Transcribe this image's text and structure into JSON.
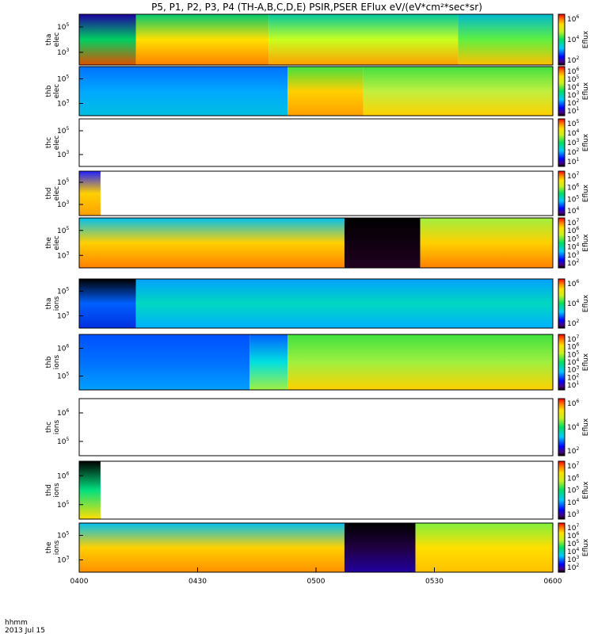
{
  "chart_data": {
    "type": "heatmap",
    "title": "P5, P1, P2, P3, P4 (TH-A,B,C,D,E) PSIR,PSER EFlux eV/(eV*cm²*sec*sr)",
    "x_ticks": [
      "0400",
      "0430",
      "0500",
      "0530",
      "0600"
    ],
    "x_label": [
      "hhmm",
      "2013 Jul 15"
    ],
    "x_range": [
      "04:00",
      "06:00"
    ],
    "panels": [
      {
        "label": [
          "tha",
          "elec"
        ],
        "yticks": [
          "10^5",
          "10^3"
        ],
        "cbar_label": "Eflux",
        "cbar_ticks": [
          "10^6",
          "10^4",
          "10^2"
        ],
        "segments": [
          {
            "from": 0,
            "to": 0.12,
            "bottom": "#e05000",
            "mid": "#00d060",
            "top": "#1c00a0"
          },
          {
            "from": 0.12,
            "to": 0.4,
            "bottom": "#ff8000",
            "mid": "#ffe000",
            "top": "#00c870"
          },
          {
            "from": 0.4,
            "to": 0.8,
            "bottom": "#ffa000",
            "mid": "#c8ff20",
            "top": "#00c8a0"
          },
          {
            "from": 0.8,
            "to": 1,
            "bottom": "#ffc000",
            "mid": "#60f040",
            "top": "#00b8d0"
          }
        ]
      },
      {
        "label": [
          "thb",
          "elec"
        ],
        "yticks": [
          "10^5",
          "10^3"
        ],
        "cbar_label": "Eflux",
        "cbar_ticks": [
          "10^6",
          "10^5",
          "10^4",
          "10^3",
          "10^2",
          "10^1"
        ],
        "segments": [
          {
            "from": 0,
            "to": 0.44,
            "bottom": "#00c0e0",
            "mid": "#00a8ff",
            "top": "#0070ff"
          },
          {
            "from": 0.44,
            "to": 0.6,
            "bottom": "#ffa000",
            "mid": "#ffd000",
            "top": "#40e040"
          },
          {
            "from": 0.6,
            "to": 1,
            "bottom": "#ffd000",
            "mid": "#c0f040",
            "top": "#40e040"
          }
        ]
      },
      {
        "label": [
          "thc",
          "elec"
        ],
        "yticks": [
          "10^5",
          "10^3"
        ],
        "cbar_label": "Eflux",
        "cbar_ticks": [
          "10^5",
          "10^4",
          "10^3",
          "10^2",
          "10^1"
        ],
        "segments": []
      },
      {
        "label": [
          "thd",
          "elec"
        ],
        "yticks": [
          "10^5",
          "10^3"
        ],
        "cbar_label": "Eflux",
        "cbar_ticks": [
          "10^7",
          "10^6",
          "10^5",
          "10^4"
        ],
        "segments": [
          {
            "from": 0,
            "to": 0.045,
            "bottom": "#ffa000",
            "mid": "#ffd000",
            "top": "#2020ff"
          }
        ]
      },
      {
        "label": [
          "the",
          "elec"
        ],
        "yticks": [
          "10^5",
          "10^3"
        ],
        "cbar_label": "Eflux",
        "cbar_ticks": [
          "10^7",
          "10^6",
          "10^5",
          "10^4",
          "10^3",
          "10^2"
        ],
        "segments": [
          {
            "from": 0,
            "to": 0.56,
            "bottom": "#ff8000",
            "mid": "#ffd000",
            "top": "#00c0f0"
          },
          {
            "from": 0.56,
            "to": 0.72,
            "bottom": "#200020",
            "mid": "#100010",
            "top": "#000000"
          },
          {
            "from": 0.72,
            "to": 1,
            "bottom": "#ff8000",
            "mid": "#ffd000",
            "top": "#a0f040"
          }
        ]
      },
      {
        "label": [
          "tha",
          "ions"
        ],
        "yticks": [
          "10^5",
          "10^3"
        ],
        "cbar_label": "Eflux",
        "cbar_ticks": [
          "10^6",
          "10^4",
          "10^2"
        ],
        "segments": [
          {
            "from": 0,
            "to": 0.12,
            "bottom": "#0030e0",
            "mid": "#0060ff",
            "top": "#000000"
          },
          {
            "from": 0.12,
            "to": 1,
            "bottom": "#00b0ff",
            "mid": "#00d8c0",
            "top": "#00a0ff"
          }
        ]
      },
      {
        "label": [
          "thb",
          "ions"
        ],
        "yticks": [
          "10^6",
          "10^5"
        ],
        "cbar_label": "Eflux",
        "cbar_ticks": [
          "10^7",
          "10^6",
          "10^5",
          "10^4",
          "10^3",
          "10^2",
          "10^1"
        ],
        "segments": [
          {
            "from": 0,
            "to": 0.36,
            "bottom": "#00a0ff",
            "mid": "#0070ff",
            "top": "#0050ff"
          },
          {
            "from": 0.36,
            "to": 0.44,
            "bottom": "#a0f040",
            "mid": "#00e0e0",
            "top": "#0060ff"
          },
          {
            "from": 0.44,
            "to": 1,
            "bottom": "#ffd000",
            "mid": "#a0f040",
            "top": "#40e040"
          }
        ]
      },
      {
        "label": [
          "thc",
          "ions"
        ],
        "yticks": [
          "10^6",
          "10^5"
        ],
        "cbar_label": "Eflux",
        "cbar_ticks": [
          "10^6",
          "10^4",
          "10^2"
        ],
        "segments": []
      },
      {
        "label": [
          "thd",
          "ions"
        ],
        "yticks": [
          "10^6",
          "10^5"
        ],
        "cbar_label": "Eflux",
        "cbar_ticks": [
          "10^7",
          "10^6",
          "10^5",
          "10^4",
          "10^3"
        ],
        "segments": [
          {
            "from": 0,
            "to": 0.045,
            "bottom": "#ffe000",
            "mid": "#00e080",
            "top": "#000000"
          }
        ]
      },
      {
        "label": [
          "the",
          "ions"
        ],
        "yticks": [
          "10^5",
          "10^3"
        ],
        "cbar_label": "Eflux",
        "cbar_ticks": [
          "10^7",
          "10^6",
          "10^5",
          "10^4",
          "10^3",
          "10^2"
        ],
        "segments": [
          {
            "from": 0,
            "to": 0.56,
            "bottom": "#ff9000",
            "mid": "#ffd000",
            "top": "#00c0f0"
          },
          {
            "from": 0.56,
            "to": 0.71,
            "bottom": "#2000a0",
            "mid": "#200040",
            "top": "#000000"
          },
          {
            "from": 0.71,
            "to": 1,
            "bottom": "#ffc000",
            "mid": "#ffe000",
            "top": "#80f040"
          }
        ]
      }
    ]
  }
}
